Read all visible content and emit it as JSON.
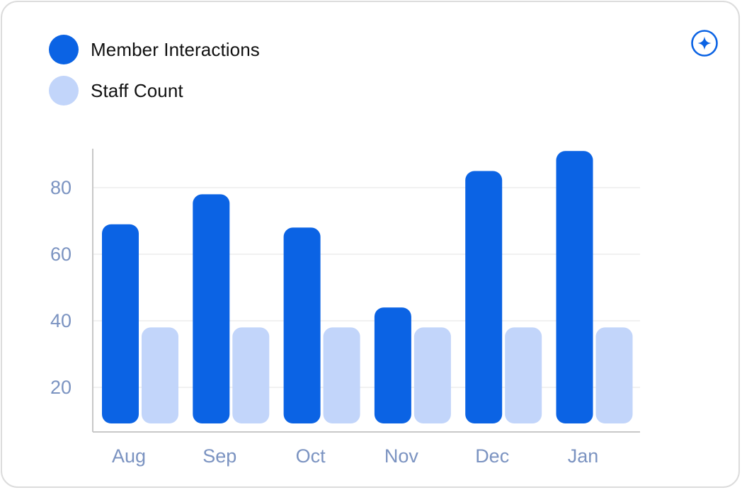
{
  "colors": {
    "primary": "#0b63e4",
    "secondary": "#c2d5fa",
    "axis_text": "#7b93c1",
    "grid": "#e3e3e3",
    "axis_line": "#c8c8c8"
  },
  "header": {
    "action_icon": "sparkle-icon"
  },
  "chart_data": {
    "type": "bar",
    "categories": [
      "Aug",
      "Sep",
      "Oct",
      "Nov",
      "Dec",
      "Jan"
    ],
    "series": [
      {
        "name": "Member Interactions",
        "values": [
          69,
          78,
          68,
          44,
          85,
          91
        ],
        "color": "#0b63e4"
      },
      {
        "name": "Staff Count",
        "values": [
          38,
          38,
          38,
          38,
          38,
          38
        ],
        "color": "#c2d5fa"
      }
    ],
    "yticks": [
      20,
      40,
      60,
      80
    ],
    "ylim": [
      8,
      95
    ],
    "grid": true,
    "legend_position": "top-left"
  }
}
